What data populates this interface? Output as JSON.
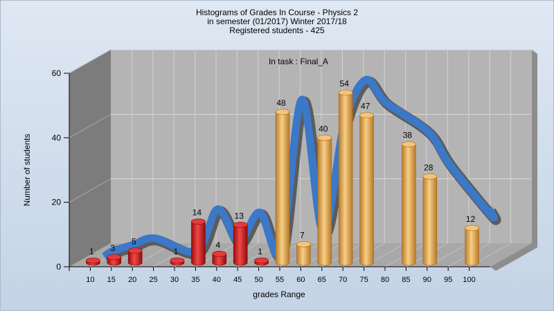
{
  "chart_data": {
    "type": "bar",
    "title_lines": [
      "Histograms of Grades  In Course - Physics 2",
      "in semester  (01/2017) Winter 2017/18",
      "Registered students - 425"
    ],
    "annotation": "In task : Final_A",
    "xlabel": "grades Range",
    "ylabel": "Number of students",
    "ylim": [
      0,
      60
    ],
    "y_ticks": [
      "0",
      "20",
      "40",
      "60"
    ],
    "categories": [
      "10",
      "15",
      "20",
      "25",
      "30",
      "35",
      "40",
      "45",
      "50",
      "55",
      "60",
      "65",
      "70",
      "75",
      "80",
      "85",
      "90",
      "95",
      "100"
    ],
    "values": [
      1,
      3,
      5,
      null,
      1,
      14,
      4,
      13,
      1,
      48,
      7,
      40,
      54,
      47,
      null,
      38,
      28,
      null,
      12
    ],
    "pass_threshold": 55,
    "colors": {
      "fail": "#d42020",
      "pass": "#e9a84e",
      "curve_front": "#3b78c8",
      "curve_back": "#5c5c5c"
    },
    "legend": "none",
    "grid": true
  }
}
